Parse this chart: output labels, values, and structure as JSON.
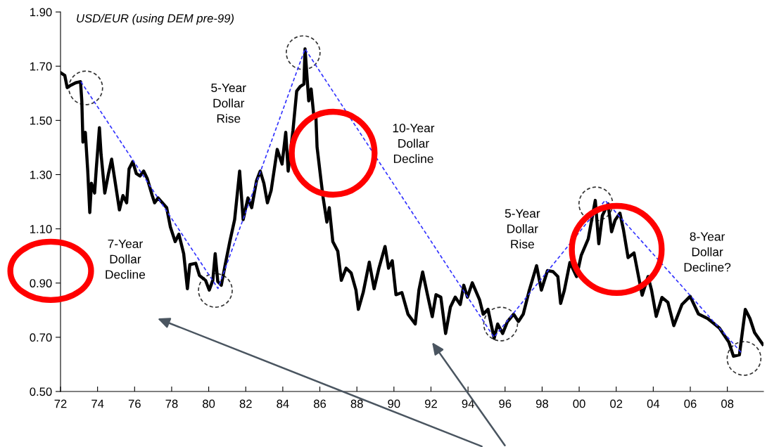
{
  "chart_data": {
    "type": "line",
    "title": "USD/EUR (using DEM pre-99)",
    "annotations": [
      "7-Year\nDollar\nDecline",
      "5-Year\nDollar\nRise",
      "10-Year\nDollar\nDecline",
      "5-Year\nDollar\nRise",
      "8-Year\nDollar\nDecline?"
    ],
    "series": [
      {
        "color": "#000000",
        "x": [
          1972.03,
          1972.23,
          1972.36,
          1972.56,
          1972.82,
          1973.08,
          1973.15,
          1973.21,
          1973.34,
          1973.47,
          1973.58,
          1973.67,
          1973.84,
          1973.93,
          1974.1,
          1974.19,
          1974.39,
          1974.59,
          1974.76,
          1974.92,
          1975.18,
          1975.37,
          1975.57,
          1975.7,
          1975.9,
          1976.09,
          1976.29,
          1976.49,
          1976.68,
          1976.95,
          1977.08,
          1977.27,
          1977.73,
          1977.93,
          1978.19,
          1978.39,
          1978.65,
          1978.85,
          1978.98,
          1979.3,
          1979.5,
          1979.83,
          1980.03,
          1980.22,
          1980.35,
          1980.49,
          1980.68,
          1980.88,
          1981.14,
          1981.4,
          1981.67,
          1981.86,
          1982.12,
          1982.32,
          1982.58,
          1982.78,
          1982.98,
          1983.17,
          1983.37,
          1983.7,
          1983.96,
          1984.16,
          1984.29,
          1984.55,
          1984.75,
          1984.94,
          1985.14,
          1985.2,
          1985.4,
          1985.53,
          1985.66,
          1985.79,
          1985.85,
          1986.05,
          1986.18,
          1986.38,
          1986.51,
          1986.7,
          1986.97,
          1987.16,
          1987.42,
          1987.69,
          1987.95,
          1988.08,
          1988.34,
          1988.67,
          1988.93,
          1989.19,
          1989.52,
          1989.71,
          1989.91,
          1990.11,
          1990.43,
          1990.76,
          1991.15,
          1991.35,
          1991.55,
          1991.81,
          1992.07,
          1992.27,
          1992.53,
          1992.79,
          1993.05,
          1993.31,
          1993.58,
          1993.77,
          1993.97,
          1994.23,
          1994.62,
          1994.82,
          1995.08,
          1995.41,
          1995.6,
          1995.87,
          1996.13,
          1996.46,
          1996.72,
          1996.98,
          1997.31,
          1997.7,
          1997.96,
          1998.29,
          1998.59,
          1998.85,
          1999.0,
          1999.2,
          1999.5,
          1999.86,
          2000.11,
          2000.49,
          2000.87,
          2001.06,
          2001.25,
          2001.56,
          2001.75,
          2001.94,
          2002.2,
          2002.39,
          2002.64,
          2002.96,
          2003.4,
          2003.72,
          2003.91,
          2004.16,
          2004.47,
          2004.79,
          2005.11,
          2005.55,
          2005.99,
          2006.44,
          2006.94,
          2007.57,
          2008.08,
          2008.33,
          2008.65,
          2008.97,
          2009.22,
          2009.47,
          2009.91
        ],
        "values": [
          1.675,
          1.666,
          1.621,
          1.63,
          1.639,
          1.643,
          1.572,
          1.42,
          1.456,
          1.313,
          1.16,
          1.268,
          1.232,
          1.321,
          1.473,
          1.375,
          1.232,
          1.304,
          1.357,
          1.286,
          1.17,
          1.223,
          1.196,
          1.321,
          1.348,
          1.304,
          1.295,
          1.313,
          1.286,
          1.223,
          1.196,
          1.214,
          1.178,
          1.107,
          1.053,
          1.08,
          1.008,
          0.879,
          0.968,
          0.973,
          0.928,
          0.91,
          0.874,
          0.91,
          1.008,
          0.906,
          0.892,
          0.964,
          1.053,
          1.134,
          1.313,
          1.134,
          1.214,
          1.178,
          1.277,
          1.313,
          1.268,
          1.196,
          1.241,
          1.393,
          1.339,
          1.456,
          1.313,
          1.464,
          1.608,
          1.625,
          1.634,
          1.764,
          1.572,
          1.616,
          1.527,
          1.509,
          1.402,
          1.286,
          1.214,
          1.125,
          1.178,
          1.053,
          1.017,
          0.91,
          0.955,
          0.937,
          0.874,
          0.803,
          0.865,
          0.977,
          0.879,
          0.955,
          1.035,
          0.955,
          0.982,
          0.857,
          0.865,
          0.785,
          0.749,
          0.874,
          0.941,
          0.857,
          0.776,
          0.857,
          0.848,
          0.714,
          0.812,
          0.848,
          0.821,
          0.892,
          0.848,
          0.901,
          0.839,
          0.785,
          0.803,
          0.696,
          0.749,
          0.714,
          0.758,
          0.785,
          0.758,
          0.785,
          0.874,
          0.964,
          0.874,
          0.946,
          0.942,
          0.924,
          0.825,
          0.873,
          0.976,
          0.924,
          1.002,
          1.063,
          1.205,
          1.045,
          1.149,
          1.192,
          1.089,
          1.132,
          1.158,
          1.097,
          0.994,
          1.011,
          0.855,
          0.924,
          0.873,
          0.777,
          0.847,
          0.829,
          0.743,
          0.821,
          0.851,
          0.786,
          0.769,
          0.734,
          0.682,
          0.63,
          0.635,
          0.803,
          0.769,
          0.717,
          0.674
        ]
      },
      {
        "color": "#3333ff",
        "line_style": "dashed",
        "x": [
          1973.1,
          1980.5,
          1985.2,
          1995.4,
          2001.4,
          2008.8
        ],
        "values": [
          1.643,
          0.88,
          1.764,
          0.7,
          1.205,
          0.64
        ]
      }
    ],
    "xlim": [
      1972,
      2009.95
    ],
    "xticks": [
      {
        "value": 1972,
        "label": "72"
      },
      {
        "value": 1974,
        "label": "74"
      },
      {
        "value": 1976,
        "label": "76"
      },
      {
        "value": 1978,
        "label": "78"
      },
      {
        "value": 1980,
        "label": "80"
      },
      {
        "value": 1982,
        "label": "82"
      },
      {
        "value": 1984,
        "label": "84"
      },
      {
        "value": 1986,
        "label": "86"
      },
      {
        "value": 1988,
        "label": "88"
      },
      {
        "value": 1990,
        "label": "90"
      },
      {
        "value": 1992,
        "label": "92"
      },
      {
        "value": 1994,
        "label": "94"
      },
      {
        "value": 1996,
        "label": "96"
      },
      {
        "value": 1998,
        "label": "98"
      },
      {
        "value": 2000,
        "label": "00"
      },
      {
        "value": 2002,
        "label": "02"
      },
      {
        "value": 2004,
        "label": "04"
      },
      {
        "value": 2006,
        "label": "06"
      },
      {
        "value": 2008,
        "label": "08"
      }
    ],
    "ylim": [
      0.5,
      1.9
    ],
    "yticks": [
      {
        "value": 0.5,
        "label": "0.50"
      },
      {
        "value": 0.7,
        "label": "0.70"
      },
      {
        "value": 0.9,
        "label": "0.90"
      },
      {
        "value": 1.1,
        "label": "1.10"
      },
      {
        "value": 1.3,
        "label": "1.30"
      },
      {
        "value": 1.5,
        "label": "1.50"
      },
      {
        "value": 1.7,
        "label": "1.70"
      },
      {
        "value": 1.9,
        "label": "1.90"
      }
    ],
    "grid": false,
    "marker": "none",
    "line_style": "solid"
  }
}
